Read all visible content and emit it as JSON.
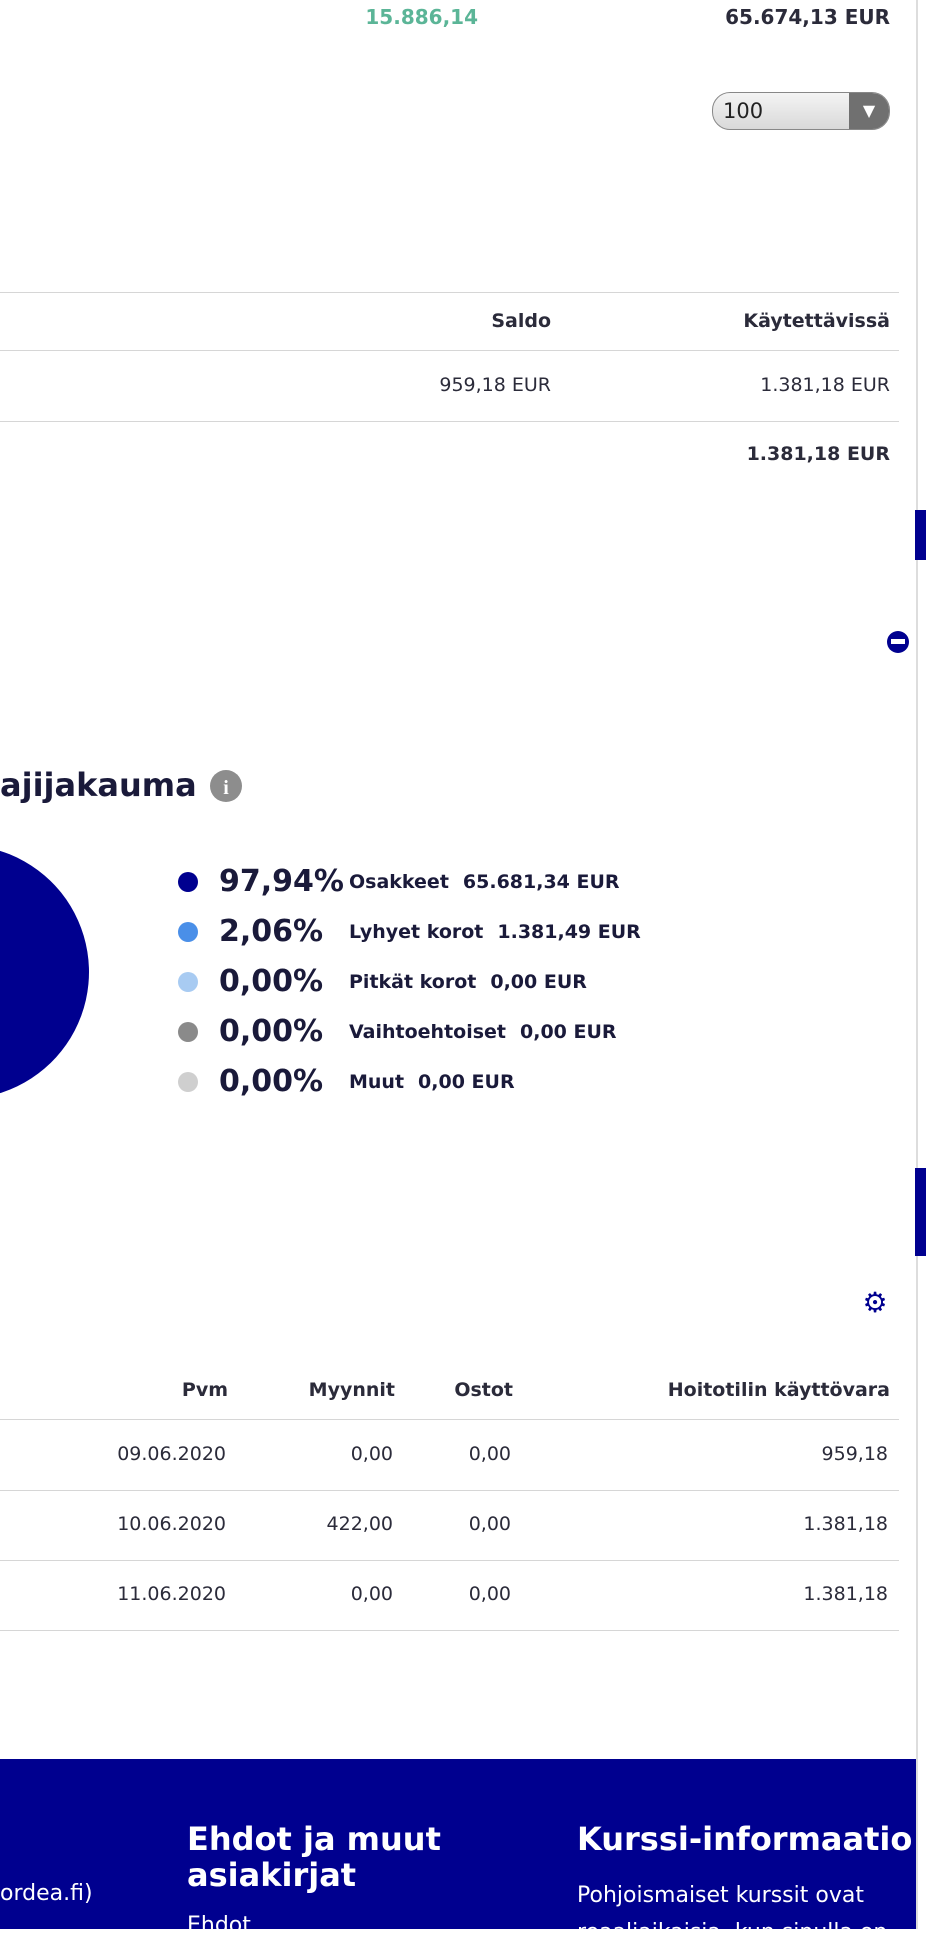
{
  "summary": {
    "gain": "15.886,14",
    "total": "65.674,13 EUR"
  },
  "page_size": "100",
  "cash_table": {
    "headers": [
      "Saldo",
      "Käytettävissä"
    ],
    "rows": [
      [
        "959,18 EUR",
        "1.381,18 EUR"
      ]
    ],
    "total": "1.381,18 EUR"
  },
  "chart_data": {
    "type": "pie",
    "title": "ajijakauma",
    "categories": [
      "Osakkeet",
      "Lyhyet korot",
      "Pitkät korot",
      "Vaihtoehtoiset",
      "Muut"
    ],
    "values": [
      97.94,
      2.06,
      0,
      0,
      0
    ],
    "value_labels": [
      "97,94%",
      "2,06%",
      "0,00%",
      "0,00%",
      "0,00%"
    ],
    "amounts": [
      "65.681,34 EUR",
      "1.381,49 EUR",
      "0,00 EUR",
      "0,00 EUR",
      "0,00 EUR"
    ],
    "colors": [
      "#00008f",
      "#4a8fe8",
      "#a8cbf2",
      "#8a8a8a",
      "#cfcfcf"
    ]
  },
  "transactions": {
    "headers": [
      "Pvm",
      "Myynnit",
      "Ostot",
      "Hoitotilin käyttövara"
    ],
    "rows": [
      [
        "09.06.2020",
        "0,00",
        "0,00",
        "959,18"
      ],
      [
        "10.06.2020",
        "422,00",
        "0,00",
        "1.381,18"
      ],
      [
        "11.06.2020",
        "0,00",
        "0,00",
        "1.381,18"
      ]
    ]
  },
  "footer": {
    "link_fragment": "ordea.fi)",
    "columns": [
      {
        "title": "Ehdot ja muut asiakirjat",
        "items": [
          "Ehdot"
        ]
      },
      {
        "title": "Kurssi-informaatio",
        "text": "Pohjoismaiset kurssit ovat reaaliaikaisia, kun sinulla on"
      }
    ]
  }
}
